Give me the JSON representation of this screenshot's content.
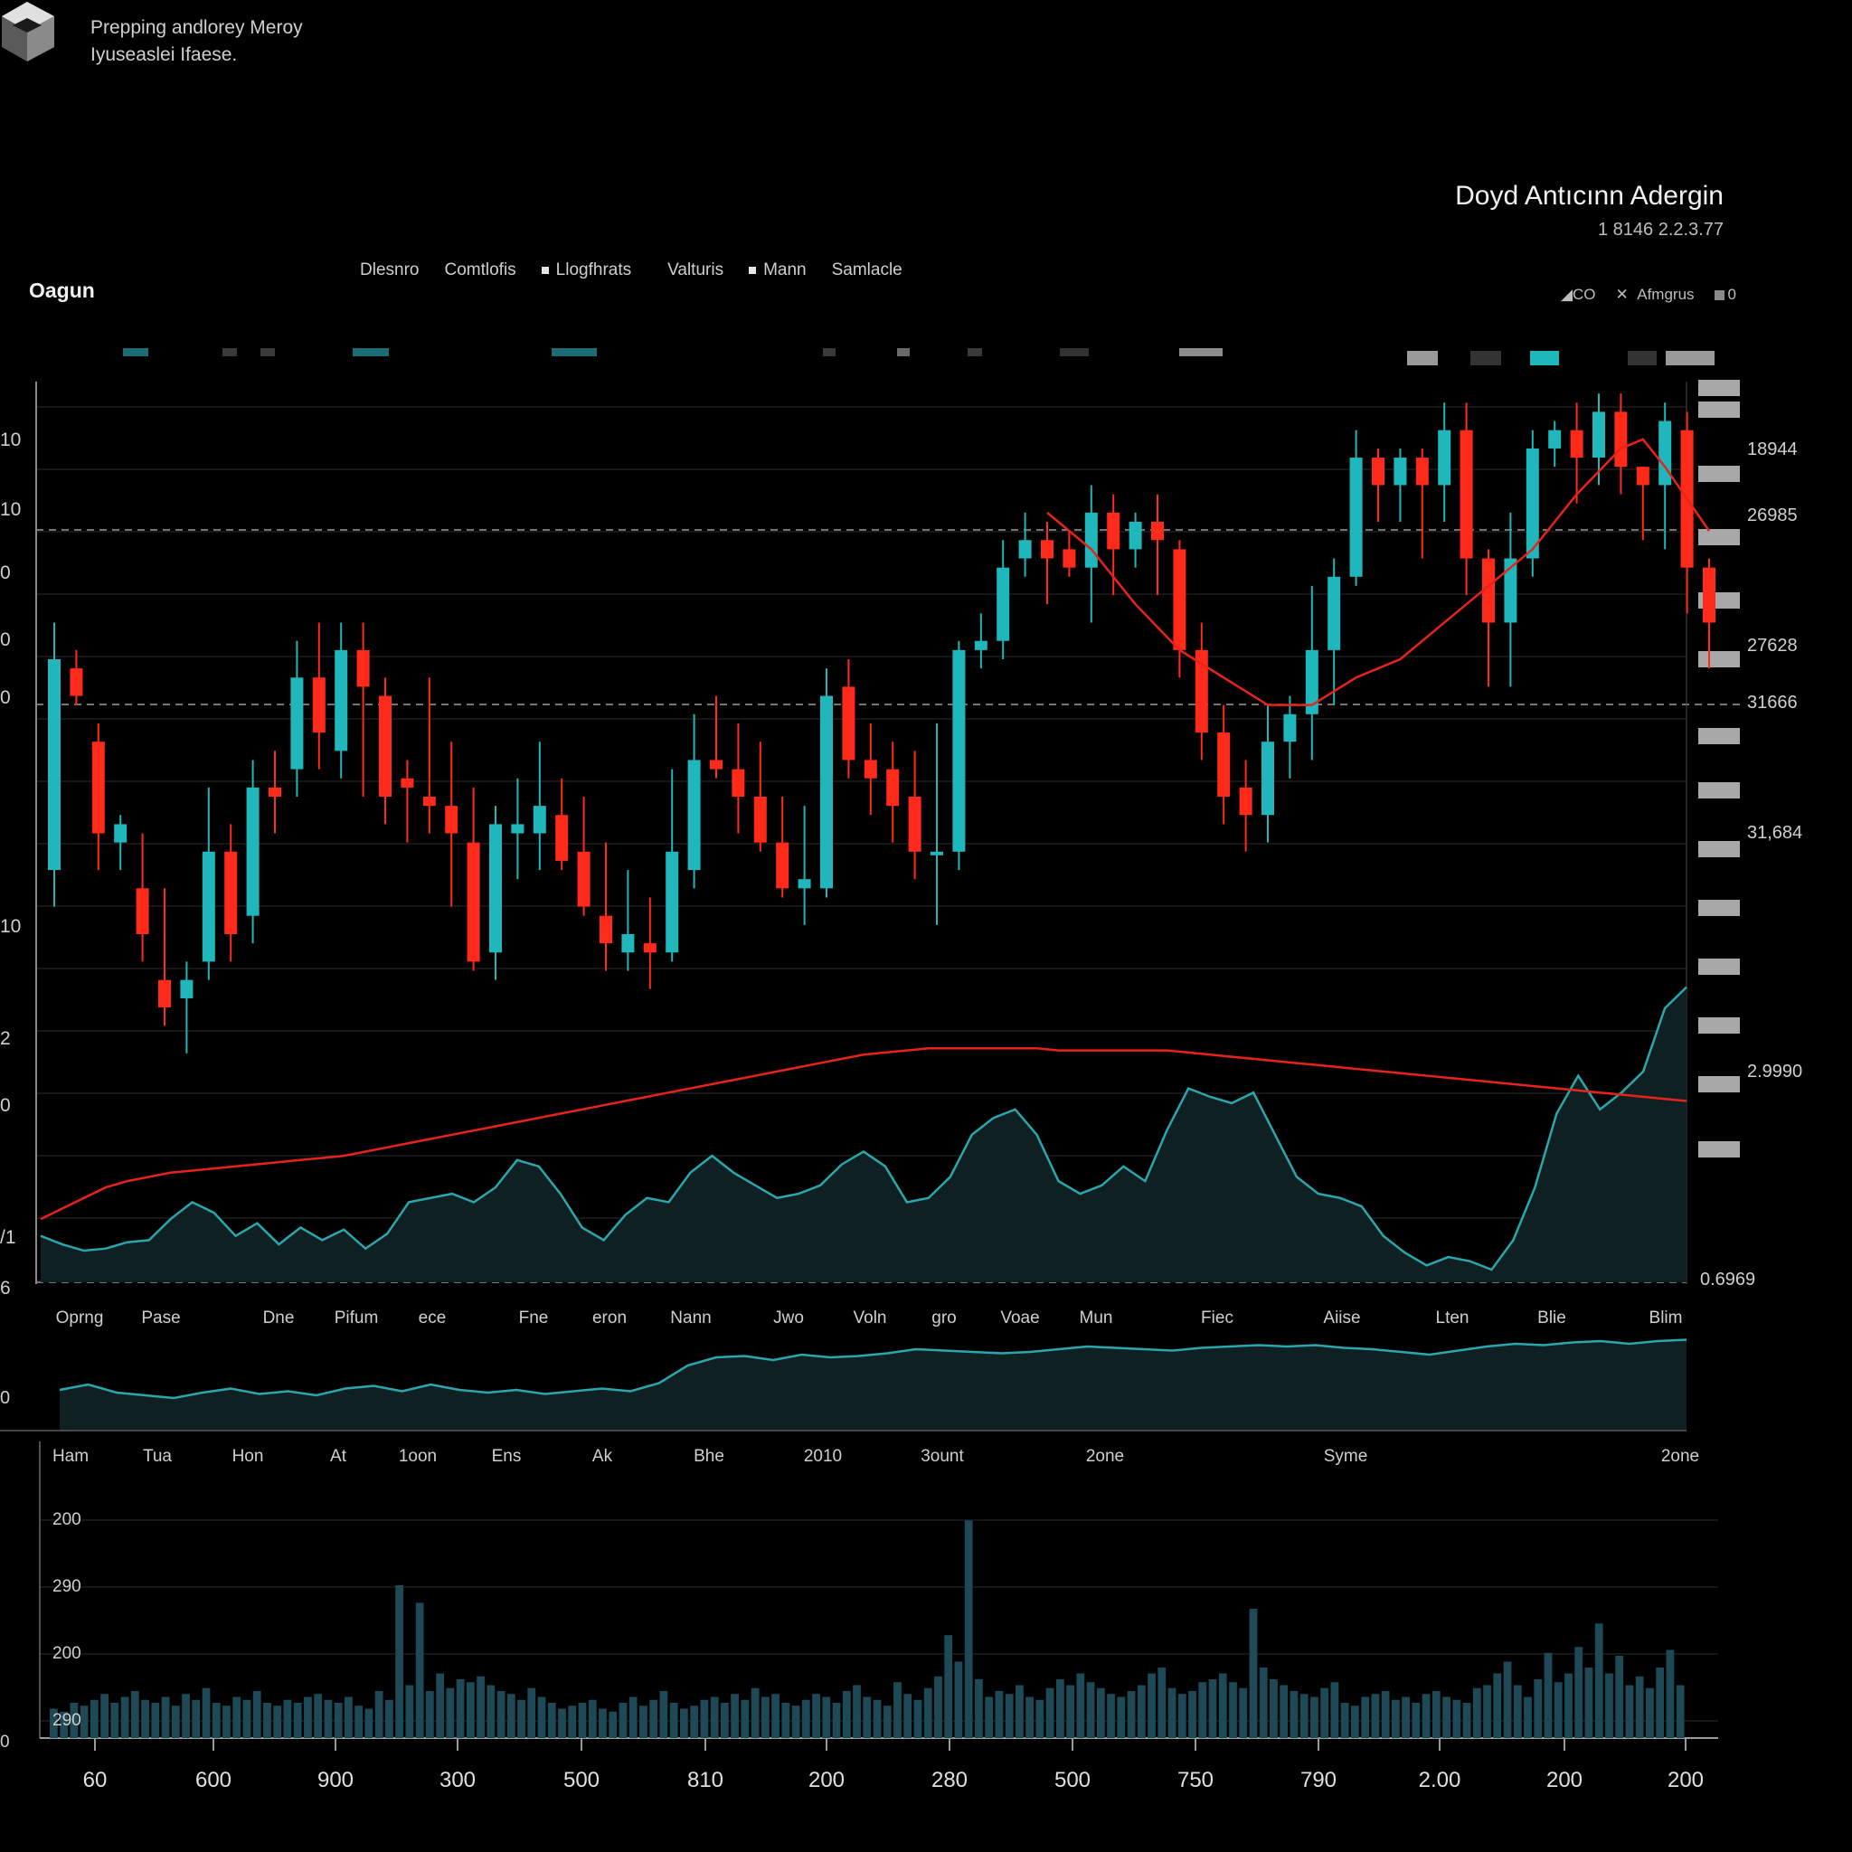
{
  "header": {
    "brand_line1": "Prepping andlorey Meroy",
    "brand_line2": "Iyuseaslei Ifaese.",
    "title": "Doyd Antıcınn Adergin",
    "subtitle": "1 8146 2.2.3.77",
    "section_label": "Oagun"
  },
  "tabs": [
    {
      "label": "Dlesnro",
      "marker": false
    },
    {
      "label": "Comtlofis",
      "marker": false
    },
    {
      "label": "Llogfhrats",
      "marker": true
    },
    {
      "label": "Valturis",
      "marker": false
    },
    {
      "label": "Mann",
      "marker": true
    },
    {
      "label": "Samlacle",
      "marker": false
    }
  ],
  "controls": {
    "left": "CO",
    "middle": "Afmgrus",
    "right": "0"
  },
  "colors": {
    "up": "#1fb7bb",
    "down": "#ff2a1a",
    "ma": "#e8231a",
    "area_line": "#2aa7ad",
    "area_fill": "#0f2023",
    "volume": "#1d4a56",
    "grid": "#2b2b2b"
  },
  "chart_data": [
    {
      "type": "candlestick",
      "title": "",
      "right_axis_labels": [
        "18944",
        "26985",
        "27628",
        "31666",
        "31,684",
        "2.9990",
        "0.6969"
      ],
      "left_axis_labels": [
        "10",
        "10",
        "0",
        "0",
        "0",
        "10",
        "2",
        "0",
        "/1",
        "6"
      ],
      "candles": [
        {
          "o": 62,
          "c": 85,
          "h": 89,
          "l": 58
        },
        {
          "o": 84,
          "c": 81,
          "h": 86,
          "l": 80
        },
        {
          "o": 76,
          "c": 66,
          "h": 78,
          "l": 62
        },
        {
          "o": 65,
          "c": 67,
          "h": 68,
          "l": 62
        },
        {
          "o": 60,
          "c": 55,
          "h": 66,
          "l": 52
        },
        {
          "o": 50,
          "c": 47,
          "h": 60,
          "l": 45
        },
        {
          "o": 48,
          "c": 50,
          "h": 52,
          "l": 42
        },
        {
          "o": 52,
          "c": 64,
          "h": 71,
          "l": 50
        },
        {
          "o": 64,
          "c": 55,
          "h": 67,
          "l": 52
        },
        {
          "o": 57,
          "c": 71,
          "h": 74,
          "l": 54
        },
        {
          "o": 71,
          "c": 70,
          "h": 75,
          "l": 66
        },
        {
          "o": 73,
          "c": 83,
          "h": 87,
          "l": 70
        },
        {
          "o": 83,
          "c": 77,
          "h": 89,
          "l": 73
        },
        {
          "o": 75,
          "c": 86,
          "h": 89,
          "l": 72
        },
        {
          "o": 86,
          "c": 82,
          "h": 89,
          "l": 70
        },
        {
          "o": 81,
          "c": 70,
          "h": 83,
          "l": 67
        },
        {
          "o": 72,
          "c": 71,
          "h": 74,
          "l": 65
        },
        {
          "o": 70,
          "c": 69,
          "h": 83,
          "l": 66
        },
        {
          "o": 69,
          "c": 66,
          "h": 76,
          "l": 58
        },
        {
          "o": 65,
          "c": 52,
          "h": 71,
          "l": 51
        },
        {
          "o": 53,
          "c": 67,
          "h": 69,
          "l": 50
        },
        {
          "o": 66,
          "c": 67,
          "h": 72,
          "l": 61
        },
        {
          "o": 66,
          "c": 69,
          "h": 76,
          "l": 62
        },
        {
          "o": 68,
          "c": 63,
          "h": 72,
          "l": 62
        },
        {
          "o": 64,
          "c": 58,
          "h": 70,
          "l": 57
        },
        {
          "o": 57,
          "c": 54,
          "h": 65,
          "l": 51
        },
        {
          "o": 53,
          "c": 55,
          "h": 62,
          "l": 51
        },
        {
          "o": 54,
          "c": 53,
          "h": 59,
          "l": 49
        },
        {
          "o": 53,
          "c": 64,
          "h": 73,
          "l": 52
        },
        {
          "o": 62,
          "c": 74,
          "h": 79,
          "l": 60
        },
        {
          "o": 74,
          "c": 73,
          "h": 81,
          "l": 72
        },
        {
          "o": 73,
          "c": 70,
          "h": 78,
          "l": 66
        },
        {
          "o": 70,
          "c": 65,
          "h": 76,
          "l": 64
        },
        {
          "o": 65,
          "c": 60,
          "h": 70,
          "l": 59
        },
        {
          "o": 60,
          "c": 61,
          "h": 69,
          "l": 56
        },
        {
          "o": 60,
          "c": 81,
          "h": 84,
          "l": 59
        },
        {
          "o": 82,
          "c": 74,
          "h": 85,
          "l": 72
        },
        {
          "o": 74,
          "c": 72,
          "h": 78,
          "l": 68
        },
        {
          "o": 73,
          "c": 69,
          "h": 76,
          "l": 65
        },
        {
          "o": 70,
          "c": 64,
          "h": 75,
          "l": 61
        },
        {
          "o": 64,
          "c": 64,
          "h": 78,
          "l": 56
        },
        {
          "o": 64,
          "c": 86,
          "h": 87,
          "l": 62
        },
        {
          "o": 86,
          "c": 87,
          "h": 90,
          "l": 84
        },
        {
          "o": 87,
          "c": 95,
          "h": 98,
          "l": 85
        },
        {
          "o": 96,
          "c": 98,
          "h": 101,
          "l": 94
        },
        {
          "o": 98,
          "c": 96,
          "h": 100,
          "l": 91
        },
        {
          "o": 97,
          "c": 95,
          "h": 99,
          "l": 94
        },
        {
          "o": 95,
          "c": 101,
          "h": 104,
          "l": 89
        },
        {
          "o": 101,
          "c": 97,
          "h": 103,
          "l": 92
        },
        {
          "o": 97,
          "c": 100,
          "h": 101,
          "l": 95
        },
        {
          "o": 100,
          "c": 98,
          "h": 103,
          "l": 92
        },
        {
          "o": 97,
          "c": 86,
          "h": 98,
          "l": 83
        },
        {
          "o": 86,
          "c": 77,
          "h": 89,
          "l": 74
        },
        {
          "o": 77,
          "c": 70,
          "h": 80,
          "l": 67
        },
        {
          "o": 71,
          "c": 68,
          "h": 74,
          "l": 64
        },
        {
          "o": 68,
          "c": 76,
          "h": 80,
          "l": 65
        },
        {
          "o": 76,
          "c": 79,
          "h": 81,
          "l": 72
        },
        {
          "o": 79,
          "c": 86,
          "h": 93,
          "l": 74
        },
        {
          "o": 86,
          "c": 94,
          "h": 96,
          "l": 80
        },
        {
          "o": 94,
          "c": 107,
          "h": 110,
          "l": 93
        },
        {
          "o": 107,
          "c": 104,
          "h": 108,
          "l": 100
        },
        {
          "o": 104,
          "c": 107,
          "h": 108,
          "l": 100
        },
        {
          "o": 107,
          "c": 104,
          "h": 108,
          "l": 96
        },
        {
          "o": 104,
          "c": 110,
          "h": 113,
          "l": 100
        },
        {
          "o": 110,
          "c": 96,
          "h": 113,
          "l": 92
        },
        {
          "o": 96,
          "c": 89,
          "h": 97,
          "l": 82
        },
        {
          "o": 89,
          "c": 96,
          "h": 101,
          "l": 82
        },
        {
          "o": 96,
          "c": 108,
          "h": 110,
          "l": 94
        },
        {
          "o": 108,
          "c": 110,
          "h": 111,
          "l": 106
        },
        {
          "o": 110,
          "c": 107,
          "h": 113,
          "l": 102
        },
        {
          "o": 107,
          "c": 112,
          "h": 114,
          "l": 104
        },
        {
          "o": 112,
          "c": 106,
          "h": 114,
          "l": 103
        },
        {
          "o": 106,
          "c": 104,
          "h": 106,
          "l": 98
        },
        {
          "o": 104,
          "c": 111,
          "h": 113,
          "l": 97
        },
        {
          "o": 110,
          "c": 95,
          "h": 112,
          "l": 90
        },
        {
          "o": 95,
          "c": 89,
          "h": 96,
          "l": 84
        }
      ],
      "moving_average_segment": [
        {
          "i": 45,
          "v": 101
        },
        {
          "i": 47,
          "v": 97
        },
        {
          "i": 49,
          "v": 91
        },
        {
          "i": 51,
          "v": 86
        },
        {
          "i": 53,
          "v": 83
        },
        {
          "i": 55,
          "v": 80
        },
        {
          "i": 57,
          "v": 80
        },
        {
          "i": 59,
          "v": 83
        },
        {
          "i": 61,
          "v": 85
        },
        {
          "i": 63,
          "v": 89
        },
        {
          "i": 65,
          "v": 93
        },
        {
          "i": 67,
          "v": 97
        },
        {
          "i": 69,
          "v": 103
        },
        {
          "i": 71,
          "v": 108
        },
        {
          "i": 72,
          "v": 109
        },
        {
          "i": 73,
          "v": 106
        },
        {
          "i": 75,
          "v": 99
        }
      ]
    },
    {
      "type": "area",
      "x_labels": [
        "Oprng",
        "Pase",
        "Dne",
        "Pifum",
        "ece",
        "Fne",
        "eron",
        "Nann",
        "Jwo",
        "Voln",
        "gro",
        "Voae",
        "Mun",
        "Fiec",
        "Aiise",
        "Lten",
        "Blie",
        "Blim"
      ],
      "values": [
        22,
        18,
        15,
        16,
        19,
        20,
        30,
        38,
        33,
        22,
        28,
        18,
        26,
        20,
        25,
        16,
        23,
        38,
        40,
        42,
        38,
        45,
        58,
        55,
        42,
        26,
        20,
        32,
        40,
        38,
        52,
        60,
        52,
        46,
        40,
        42,
        46,
        56,
        62,
        55,
        38,
        40,
        50,
        70,
        78,
        82,
        70,
        48,
        42,
        46,
        55,
        48,
        72,
        92,
        88,
        85,
        90,
        70,
        50,
        42,
        40,
        36,
        22,
        14,
        8,
        12,
        10,
        6,
        20,
        45,
        80,
        98,
        82,
        90,
        100,
        130,
        140
      ],
      "ma_values": [
        30,
        35,
        40,
        45,
        48,
        50,
        52,
        53,
        54,
        55,
        56,
        57,
        58,
        59,
        60,
        62,
        64,
        66,
        68,
        70,
        72,
        74,
        76,
        78,
        80,
        82,
        84,
        86,
        88,
        90,
        92,
        94,
        96,
        98,
        100,
        102,
        104,
        106,
        108,
        109,
        110,
        111,
        111,
        111,
        111,
        111,
        111,
        110,
        110,
        110,
        110,
        110,
        110,
        109,
        108,
        107,
        106,
        105,
        104,
        103,
        102,
        101,
        100,
        99,
        98,
        97,
        96,
        95,
        94,
        93,
        92,
        91,
        90,
        89,
        88,
        87,
        86
      ]
    },
    {
      "type": "area",
      "x_labels": [
        "Ham",
        "Tua",
        "Hon",
        "At",
        "1oon",
        "Ens",
        "Ak",
        "Bhe",
        "2010",
        "3ount",
        "2one",
        "Syme",
        "2one"
      ],
      "values": [
        30,
        34,
        28,
        26,
        24,
        28,
        31,
        27,
        29,
        26,
        31,
        33,
        29,
        34,
        30,
        28,
        30,
        27,
        29,
        31,
        29,
        35,
        48,
        54,
        55,
        52,
        56,
        54,
        55,
        57,
        60,
        59,
        58,
        57,
        58,
        60,
        62,
        61,
        60,
        59,
        61,
        62,
        63,
        62,
        63,
        61,
        60,
        58,
        56,
        59,
        62,
        64,
        63,
        65,
        66,
        64,
        66,
        67
      ]
    },
    {
      "type": "bar",
      "x_labels": [
        "60",
        "600",
        "900",
        "300",
        "500",
        "810",
        "200",
        "280",
        "500",
        "750",
        "790",
        "2.00",
        "200",
        "200"
      ],
      "y_labels": [
        "200",
        "290",
        "200",
        "290",
        "0"
      ],
      "values": [
        10,
        9,
        12,
        11,
        13,
        15,
        12,
        14,
        16,
        13,
        12,
        14,
        11,
        15,
        13,
        17,
        12,
        11,
        14,
        13,
        16,
        12,
        11,
        13,
        12,
        14,
        15,
        13,
        12,
        14,
        11,
        10,
        16,
        13,
        52,
        18,
        46,
        16,
        22,
        17,
        20,
        19,
        21,
        18,
        16,
        15,
        13,
        17,
        14,
        12,
        10,
        11,
        12,
        13,
        10,
        9,
        12,
        14,
        11,
        13,
        16,
        12,
        10,
        11,
        13,
        14,
        12,
        15,
        13,
        17,
        14,
        15,
        12,
        11,
        13,
        15,
        14,
        12,
        16,
        18,
        14,
        13,
        11,
        19,
        15,
        13,
        17,
        21,
        35,
        26,
        74,
        20,
        14,
        16,
        15,
        18,
        14,
        13,
        17,
        20,
        18,
        22,
        19,
        17,
        15,
        14,
        16,
        18,
        22,
        24,
        17,
        15,
        16,
        19,
        20,
        22,
        19,
        17,
        44,
        24,
        20,
        18,
        16,
        15,
        14,
        17,
        19,
        12,
        11,
        14,
        15,
        16,
        13,
        14,
        12,
        15,
        16,
        14,
        13,
        12,
        17,
        18,
        22,
        26,
        18,
        14,
        20,
        29,
        19,
        22,
        31,
        24,
        39,
        22,
        28,
        18,
        21,
        17,
        24,
        30,
        18
      ]
    }
  ]
}
